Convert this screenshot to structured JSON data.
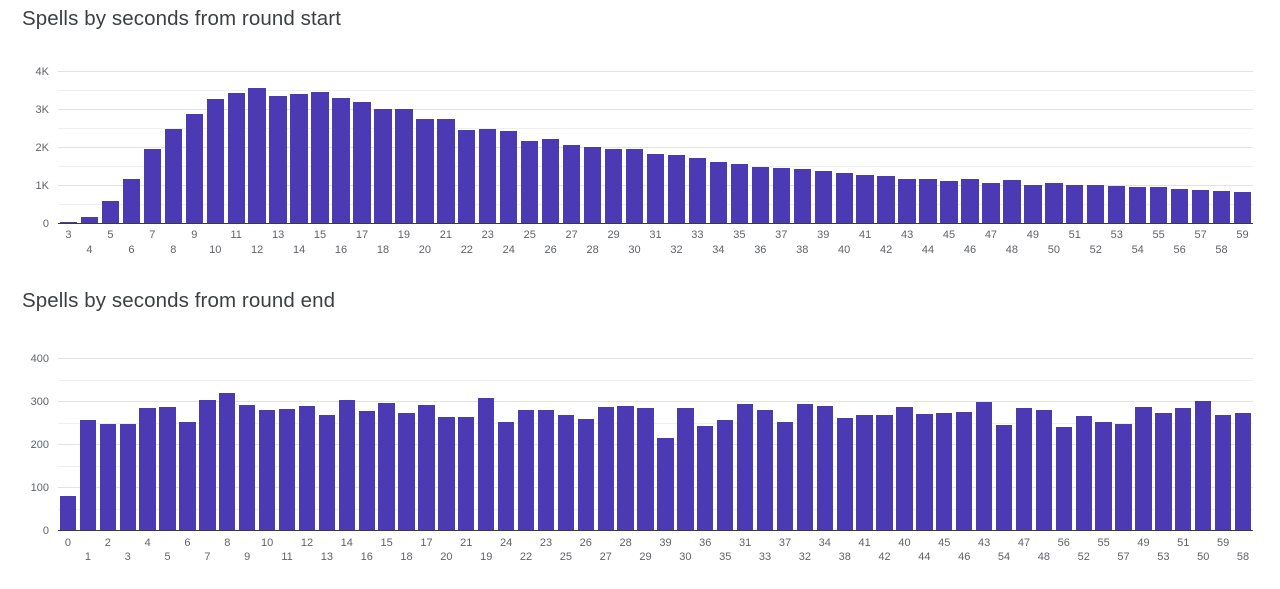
{
  "style": {
    "accent_bar_color": "#4c39b4",
    "grid_major": "#e3e3e3",
    "grid_minor": "#efefef",
    "baseline_color": "#3c3c3c",
    "title_color": "#3c4043",
    "tick_label_color": "#5f6368",
    "background": "#ffffff"
  },
  "chart_data": [
    {
      "type": "bar",
      "title": "Spells by seconds from round start",
      "xlabel": "",
      "ylabel": "",
      "legend": "none",
      "grid": true,
      "ylim": [
        0,
        4000
      ],
      "yticks": [
        0,
        1000,
        2000,
        3000,
        4000
      ],
      "ytick_labels": [
        "0",
        "1K",
        "2K",
        "3K",
        "4K"
      ],
      "minor_step": 500,
      "bar_color": "#4c39b4",
      "categories": [
        "3",
        "4",
        "5",
        "6",
        "7",
        "8",
        "9",
        "10",
        "11",
        "12",
        "13",
        "14",
        "15",
        "16",
        "17",
        "18",
        "19",
        "20",
        "21",
        "22",
        "23",
        "24",
        "25",
        "26",
        "27",
        "28",
        "29",
        "30",
        "31",
        "32",
        "33",
        "34",
        "35",
        "36",
        "37",
        "38",
        "39",
        "40",
        "41",
        "42",
        "43",
        "44",
        "45",
        "46",
        "47",
        "48",
        "49",
        "50",
        "51",
        "52",
        "53",
        "54",
        "55",
        "56",
        "57",
        "58",
        "59"
      ],
      "values": [
        20,
        150,
        590,
        1170,
        1950,
        2480,
        2860,
        3270,
        3420,
        3540,
        3350,
        3390,
        3460,
        3290,
        3180,
        2990,
        3000,
        2730,
        2740,
        2440,
        2465,
        2410,
        2160,
        2200,
        2050,
        1990,
        1935,
        1960,
        1805,
        1790,
        1700,
        1610,
        1540,
        1480,
        1450,
        1420,
        1370,
        1320,
        1260,
        1250,
        1170,
        1160,
        1110,
        1155,
        1065,
        1135,
        1000,
        1065,
        995,
        1000,
        975,
        935,
        940,
        890,
        875,
        855,
        825
      ]
    },
    {
      "type": "bar",
      "title": "Spells by seconds from round end",
      "xlabel": "",
      "ylabel": "",
      "legend": "none",
      "grid": true,
      "ylim": [
        0,
        400
      ],
      "yticks": [
        0,
        100,
        200,
        300,
        400
      ],
      "ytick_labels": [
        "0",
        "100",
        "200",
        "300",
        "400"
      ],
      "minor_step": 50,
      "bar_color": "#4c39b4",
      "categories": [
        "0",
        "1",
        "2",
        "3",
        "4",
        "5",
        "6",
        "7",
        "8",
        "9",
        "10",
        "11",
        "12",
        "13",
        "14",
        "16",
        "15",
        "18",
        "17",
        "20",
        "21",
        "19",
        "24",
        "22",
        "23",
        "25",
        "26",
        "27",
        "28",
        "29",
        "39",
        "30",
        "36",
        "35",
        "31",
        "33",
        "37",
        "32",
        "34",
        "38",
        "41",
        "42",
        "40",
        "44",
        "45",
        "46",
        "43",
        "54",
        "47",
        "48",
        "56",
        "52",
        "55",
        "57",
        "49",
        "53",
        "51",
        "50",
        "59",
        "58"
      ],
      "values": [
        80,
        255,
        247,
        246,
        284,
        287,
        252,
        303,
        318,
        290,
        278,
        281,
        289,
        267,
        303,
        276,
        296,
        272,
        291,
        263,
        263,
        306,
        252,
        279,
        280,
        268,
        259,
        286,
        288,
        283,
        215,
        284,
        241,
        257,
        293,
        279,
        251,
        292,
        289,
        261,
        268,
        267,
        287,
        270,
        271,
        275,
        297,
        244,
        283,
        279,
        240,
        265,
        252,
        247,
        287,
        273,
        284,
        300,
        268,
        273
      ]
    }
  ]
}
